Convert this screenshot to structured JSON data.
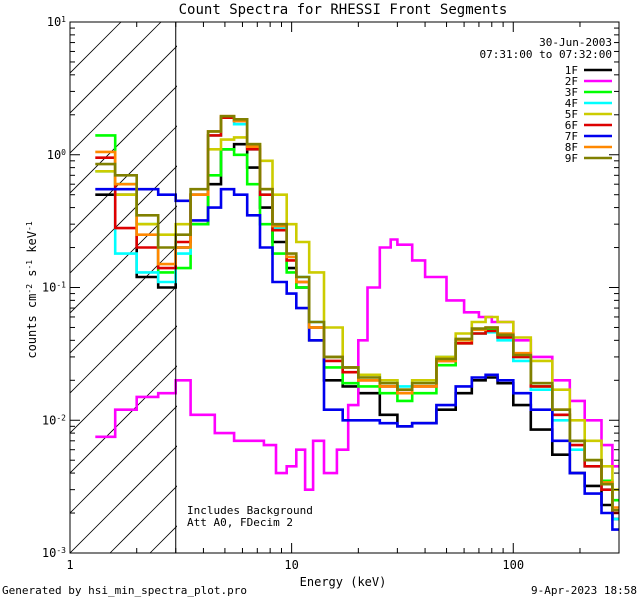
{
  "chart_data": {
    "type": "line",
    "title": "Count Spectra for RHESSI Front Segments",
    "xlabel": "Energy (keV)",
    "ylabel_parts": [
      "counts cm",
      "-2",
      " s",
      "-1",
      " keV",
      "-1"
    ],
    "xscale": "log",
    "yscale": "log",
    "xlim": [
      1,
      300
    ],
    "ylim": [
      0.001,
      10
    ],
    "x_tick_labels": [
      {
        "value": 1,
        "label": "1"
      },
      {
        "value": 10,
        "label": "10"
      },
      {
        "value": 100,
        "label": "100"
      }
    ],
    "y_tick_labels": [
      {
        "value": 10,
        "base": "10",
        "exp": "1"
      },
      {
        "value": 1,
        "base": "10",
        "exp": "0"
      },
      {
        "value": 0.1,
        "base": "10",
        "exp": "-1"
      },
      {
        "value": 0.01,
        "base": "10",
        "exp": "-2"
      },
      {
        "value": 0.001,
        "base": "10",
        "exp": "-3"
      }
    ],
    "date": "30-Jun-2003",
    "time_range": "07:31:00 to 07:32:00",
    "legend_placement": "top-right",
    "hatched_region_keV": [
      1,
      3
    ],
    "annotation": [
      "Includes Background",
      "Att A0, FDecim 2"
    ],
    "series": [
      {
        "name": "1F",
        "color": "#000000",
        "energy": [
          1.3,
          1.6,
          2.0,
          2.5,
          3.0,
          3.5,
          4.2,
          4.8,
          5.5,
          6.3,
          7.2,
          8.2,
          9.5,
          10.5,
          12,
          14,
          17,
          20,
          25,
          30,
          35,
          45,
          55,
          65,
          75,
          85,
          100,
          120,
          150,
          180,
          210,
          250,
          280
        ],
        "counts": [
          0.5,
          0.5,
          0.12,
          0.1,
          0.2,
          0.3,
          0.6,
          1.1,
          1.2,
          0.8,
          0.4,
          0.22,
          0.14,
          0.1,
          0.04,
          0.02,
          0.018,
          0.016,
          0.011,
          0.009,
          0.0095,
          0.012,
          0.016,
          0.02,
          0.021,
          0.019,
          0.013,
          0.0085,
          0.0055,
          0.004,
          0.0032,
          0.0023,
          0.0018
        ]
      },
      {
        "name": "2F",
        "color": "#ff00ff",
        "energy": [
          1.3,
          1.6,
          2.0,
          2.5,
          3.0,
          3.5,
          4.5,
          5.5,
          6.5,
          7.5,
          8.5,
          9.5,
          10.5,
          11.5,
          12.5,
          14,
          16,
          18,
          20,
          22,
          25,
          28,
          30,
          35,
          40,
          50,
          60,
          70,
          80,
          100,
          120,
          150,
          180,
          210,
          250,
          280
        ],
        "counts": [
          0.0075,
          0.012,
          0.015,
          0.016,
          0.02,
          0.011,
          0.008,
          0.007,
          0.007,
          0.0065,
          0.004,
          0.0045,
          0.006,
          0.003,
          0.007,
          0.004,
          0.006,
          0.013,
          0.04,
          0.1,
          0.2,
          0.23,
          0.21,
          0.16,
          0.12,
          0.08,
          0.065,
          0.06,
          0.055,
          0.04,
          0.03,
          0.02,
          0.014,
          0.01,
          0.0065,
          0.0045
        ]
      },
      {
        "name": "3F",
        "color": "#00ff00",
        "energy": [
          1.3,
          1.6,
          2.0,
          2.5,
          3.0,
          3.5,
          4.2,
          4.8,
          5.5,
          6.3,
          7.2,
          8.2,
          9.5,
          10.5,
          12,
          14,
          17,
          20,
          25,
          30,
          35,
          45,
          55,
          65,
          75,
          85,
          100,
          120,
          150,
          180,
          210,
          250,
          280
        ],
        "counts": [
          1.4,
          0.6,
          0.3,
          0.13,
          0.14,
          0.3,
          0.7,
          1.1,
          1.0,
          0.6,
          0.3,
          0.18,
          0.13,
          0.1,
          0.05,
          0.025,
          0.019,
          0.018,
          0.016,
          0.014,
          0.016,
          0.026,
          0.038,
          0.045,
          0.048,
          0.043,
          0.03,
          0.018,
          0.011,
          0.007,
          0.005,
          0.0035,
          0.0025
        ]
      },
      {
        "name": "4F",
        "color": "#00ffff",
        "energy": [
          1.3,
          1.6,
          2.0,
          2.5,
          3.0,
          3.5,
          4.2,
          4.8,
          5.5,
          6.3,
          7.2,
          8.2,
          9.5,
          10.5,
          12,
          14,
          17,
          20,
          25,
          30,
          35,
          45,
          55,
          65,
          75,
          85,
          100,
          120,
          150,
          180,
          210,
          250,
          280
        ],
        "counts": [
          0.75,
          0.18,
          0.13,
          0.11,
          0.18,
          0.5,
          1.4,
          1.9,
          1.7,
          1.1,
          0.5,
          0.28,
          0.17,
          0.12,
          0.055,
          0.03,
          0.025,
          0.022,
          0.02,
          0.018,
          0.02,
          0.03,
          0.04,
          0.045,
          0.046,
          0.04,
          0.028,
          0.017,
          0.01,
          0.006,
          0.0045,
          0.003,
          0.0018
        ]
      },
      {
        "name": "5F",
        "color": "#cccc00",
        "energy": [
          1.3,
          1.6,
          2.0,
          2.5,
          3.0,
          3.5,
          4.2,
          4.8,
          5.5,
          6.3,
          7.2,
          8.2,
          9.5,
          10.5,
          12,
          14,
          17,
          20,
          25,
          30,
          35,
          45,
          55,
          65,
          75,
          85,
          100,
          120,
          150,
          180,
          210,
          250,
          280
        ],
        "counts": [
          0.75,
          0.5,
          0.3,
          0.25,
          0.3,
          0.5,
          1.1,
          1.3,
          1.35,
          1.2,
          0.9,
          0.5,
          0.3,
          0.22,
          0.13,
          0.05,
          0.025,
          0.022,
          0.02,
          0.017,
          0.02,
          0.03,
          0.045,
          0.055,
          0.06,
          0.055,
          0.042,
          0.028,
          0.017,
          0.01,
          0.007,
          0.0045,
          0.003
        ]
      },
      {
        "name": "6F",
        "color": "#dd0000",
        "energy": [
          1.3,
          1.6,
          2.0,
          2.5,
          3.0,
          3.5,
          4.2,
          4.8,
          5.5,
          6.3,
          7.2,
          8.2,
          9.5,
          10.5,
          12,
          14,
          17,
          20,
          25,
          30,
          35,
          45,
          55,
          65,
          75,
          85,
          100,
          120,
          150,
          180,
          210,
          250,
          280
        ],
        "counts": [
          0.95,
          0.28,
          0.2,
          0.14,
          0.22,
          0.5,
          1.4,
          1.9,
          1.8,
          1.1,
          0.5,
          0.27,
          0.16,
          0.11,
          0.05,
          0.028,
          0.023,
          0.02,
          0.018,
          0.016,
          0.018,
          0.028,
          0.038,
          0.045,
          0.047,
          0.042,
          0.03,
          0.018,
          0.011,
          0.0065,
          0.0045,
          0.003,
          0.002
        ]
      },
      {
        "name": "7F",
        "color": "#0000ee",
        "energy": [
          1.3,
          1.6,
          2.0,
          2.5,
          3.0,
          3.5,
          4.2,
          4.8,
          5.5,
          6.3,
          7.2,
          8.2,
          9.5,
          10.5,
          12,
          14,
          17,
          20,
          25,
          30,
          35,
          45,
          55,
          65,
          75,
          85,
          100,
          120,
          150,
          180,
          210,
          250,
          280
        ],
        "counts": [
          0.55,
          0.55,
          0.55,
          0.5,
          0.45,
          0.32,
          0.4,
          0.55,
          0.5,
          0.35,
          0.2,
          0.11,
          0.09,
          0.07,
          0.04,
          0.012,
          0.01,
          0.01,
          0.0095,
          0.009,
          0.0095,
          0.013,
          0.018,
          0.021,
          0.022,
          0.02,
          0.016,
          0.012,
          0.007,
          0.004,
          0.0028,
          0.002,
          0.0015
        ]
      },
      {
        "name": "8F",
        "color": "#ff8800",
        "energy": [
          1.3,
          1.6,
          2.0,
          2.5,
          3.0,
          3.5,
          4.2,
          4.8,
          5.5,
          6.3,
          7.2,
          8.2,
          9.5,
          10.5,
          12,
          14,
          17,
          20,
          25,
          30,
          35,
          45,
          55,
          65,
          75,
          85,
          100,
          120,
          150,
          180,
          210,
          250,
          280
        ],
        "counts": [
          1.05,
          0.6,
          0.25,
          0.15,
          0.2,
          0.5,
          1.5,
          1.95,
          1.8,
          1.15,
          0.55,
          0.29,
          0.17,
          0.11,
          0.05,
          0.03,
          0.025,
          0.02,
          0.018,
          0.016,
          0.018,
          0.028,
          0.04,
          0.048,
          0.05,
          0.045,
          0.032,
          0.019,
          0.012,
          0.007,
          0.005,
          0.0034,
          0.0022
        ]
      },
      {
        "name": "9F",
        "color": "#808000",
        "energy": [
          1.3,
          1.6,
          2.0,
          2.5,
          3.0,
          3.5,
          4.2,
          4.8,
          5.5,
          6.3,
          7.2,
          8.2,
          9.5,
          10.5,
          12,
          14,
          17,
          20,
          25,
          30,
          35,
          45,
          55,
          65,
          75,
          85,
          100,
          120,
          150,
          180,
          210,
          250,
          280
        ],
        "counts": [
          0.85,
          0.7,
          0.35,
          0.2,
          0.25,
          0.55,
          1.5,
          1.95,
          1.85,
          1.2,
          0.55,
          0.3,
          0.18,
          0.12,
          0.055,
          0.03,
          0.025,
          0.021,
          0.019,
          0.017,
          0.019,
          0.029,
          0.041,
          0.049,
          0.05,
          0.044,
          0.031,
          0.019,
          0.012,
          0.007,
          0.005,
          0.0033,
          0.0021
        ]
      }
    ]
  },
  "footer": {
    "left": "Generated by hsi_min_spectra_plot.pro",
    "right": "9-Apr-2023 18:58"
  }
}
